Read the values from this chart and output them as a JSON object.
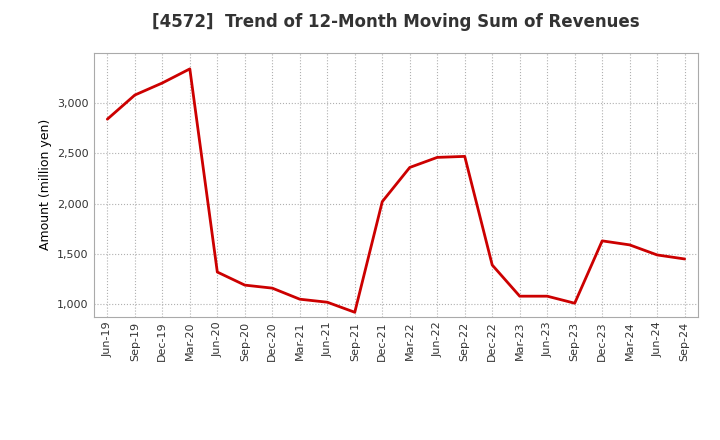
{
  "title": "[4572]  Trend of 12-Month Moving Sum of Revenues",
  "ylabel": "Amount (million yen)",
  "line_color": "#cc0000",
  "background_color": "#ffffff",
  "plot_bg_color": "#ffffff",
  "grid_color": "#b0b0b0",
  "x_labels": [
    "Jun-19",
    "Sep-19",
    "Dec-19",
    "Mar-20",
    "Jun-20",
    "Sep-20",
    "Dec-20",
    "Mar-21",
    "Jun-21",
    "Sep-21",
    "Dec-21",
    "Mar-22",
    "Jun-22",
    "Sep-22",
    "Dec-22",
    "Mar-23",
    "Jun-23",
    "Sep-23",
    "Dec-23",
    "Mar-24",
    "Jun-24",
    "Sep-24"
  ],
  "y_values": [
    2840,
    3080,
    3200,
    3340,
    1320,
    1190,
    1160,
    1050,
    1020,
    920,
    2020,
    2360,
    2460,
    2470,
    1390,
    1080,
    1080,
    1010,
    1630,
    1590,
    1490,
    1450
  ],
  "ylim": [
    875,
    3500
  ],
  "yticks": [
    1000,
    1500,
    2000,
    2500,
    3000
  ],
  "ytick_labels": [
    "1,000",
    "1,500",
    "2,000",
    "2,500",
    "3,000"
  ],
  "title_fontsize": 12,
  "tick_fontsize": 8,
  "ylabel_fontsize": 9,
  "linewidth": 2.0
}
